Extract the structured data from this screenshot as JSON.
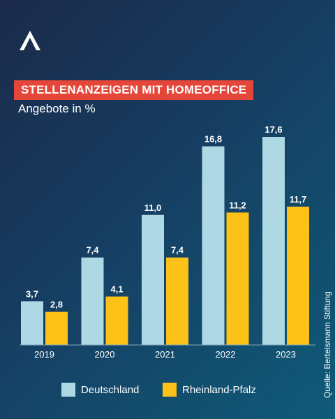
{
  "header": {
    "title": "STELLENANZEIGEN MIT HOMEOFFICE",
    "subtitle": "Angebote in %"
  },
  "source": "Quelle:  Bertelsmann Stiftung",
  "colors": {
    "deutschland": "#aed8e3",
    "rheinland_pfalz": "#fdc218",
    "title_bg": "#e4473a"
  },
  "chart_data": {
    "type": "bar",
    "title": "STELLENANZEIGEN MIT HOMEOFFICE",
    "subtitle": "Angebote in %",
    "categories": [
      "2019",
      "2020",
      "2021",
      "2022",
      "2023"
    ],
    "series": [
      {
        "name": "Deutschland",
        "values": [
          3.7,
          7.4,
          11.0,
          16.8,
          17.6
        ],
        "labels": [
          "3,7",
          "7,4",
          "11,0",
          "16,8",
          "17,6"
        ]
      },
      {
        "name": "Rheinland-Pfalz",
        "values": [
          2.8,
          4.1,
          7.4,
          11.2,
          11.7
        ],
        "labels": [
          "2,8",
          "4,1",
          "7,4",
          "11,2",
          "11,7"
        ]
      }
    ],
    "ylim": [
      0,
      17.6
    ],
    "grid": false,
    "legend": "bottom"
  }
}
